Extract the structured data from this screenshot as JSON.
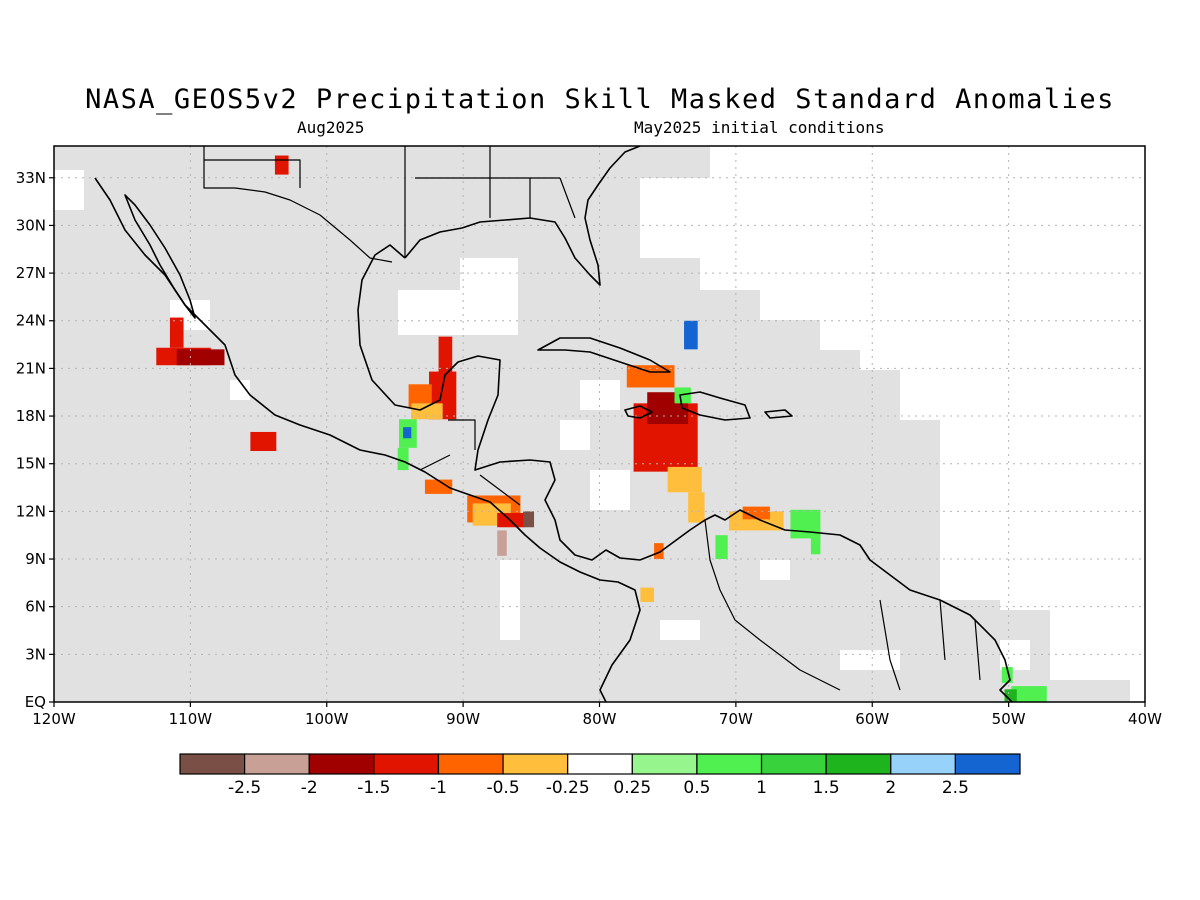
{
  "title": "NASA_GEOS5v2 Precipitation Skill Masked Standard Anomalies",
  "subtitle_left": "Aug2025",
  "subtitle_right": "May2025 initial conditions",
  "colors": {
    "land_mask": "#e1e1e1",
    "ocean": "#ffffff",
    "coast": "#000000",
    "grid": "#b4b4b4"
  },
  "map": {
    "lon_range": [
      -120,
      -40
    ],
    "lat_range": [
      0,
      35
    ],
    "lon_ticks": [
      -120,
      -110,
      -100,
      -90,
      -80,
      -70,
      -60,
      -50,
      -40
    ],
    "lon_tick_labels": [
      "120W",
      "110W",
      "100W",
      "90W",
      "80W",
      "70W",
      "60W",
      "50W",
      "40W"
    ],
    "lat_ticks": [
      0,
      3,
      6,
      9,
      12,
      15,
      18,
      21,
      24,
      27,
      30,
      33
    ],
    "lat_tick_labels": [
      "EQ",
      "3N",
      "6N",
      "9N",
      "12N",
      "15N",
      "18N",
      "21N",
      "24N",
      "27N",
      "30N",
      "33N"
    ]
  },
  "colorbar": {
    "colors": [
      "#7a5046",
      "#c8a096",
      "#a00000",
      "#e11400",
      "#ff6400",
      "#ffbe3c",
      "#ffffff",
      "#96f58c",
      "#50f050",
      "#37d23c",
      "#1eb41e",
      "#96d2fa",
      "#1464d2"
    ],
    "labels": [
      "-2.5",
      "-2",
      "-1.5",
      "-1",
      "-0.5",
      "-0.25",
      "0.25",
      "0.5",
      "1",
      "1.5",
      "2",
      "2.5"
    ]
  },
  "anomaly_patches": [
    {
      "lon": [
        -112.5,
        -108.5
      ],
      "lat": [
        21.2,
        22.3
      ],
      "color": "#e11400"
    },
    {
      "lon": [
        -111.5,
        -110.5
      ],
      "lat": [
        22.3,
        24.2
      ],
      "color": "#e11400"
    },
    {
      "lon": [
        -111.0,
        -107.5
      ],
      "lat": [
        21.2,
        22.2
      ],
      "color": "#a00000"
    },
    {
      "lon": [
        -105.6,
        -103.7
      ],
      "lat": [
        15.8,
        17.0
      ],
      "color": "#e11400"
    },
    {
      "lon": [
        -103.8,
        -102.8
      ],
      "lat": [
        33.2,
        34.4
      ],
      "color": "#e11400"
    },
    {
      "lon": [
        -91.8,
        -90.8
      ],
      "lat": [
        19.5,
        23.0
      ],
      "color": "#e11400"
    },
    {
      "lon": [
        -92.5,
        -90.5
      ],
      "lat": [
        17.8,
        20.8
      ],
      "color": "#e11400"
    },
    {
      "lon": [
        -94.0,
        -92.3
      ],
      "lat": [
        18.5,
        20.0
      ],
      "color": "#ff6400"
    },
    {
      "lon": [
        -93.8,
        -91.5
      ],
      "lat": [
        17.8,
        18.8
      ],
      "color": "#ffbe3c"
    },
    {
      "lon": [
        -94.7,
        -93.4
      ],
      "lat": [
        16.0,
        17.8
      ],
      "color": "#50f050"
    },
    {
      "lon": [
        -94.4,
        -93.8
      ],
      "lat": [
        16.6,
        17.3
      ],
      "color": "#1464d2"
    },
    {
      "lon": [
        -94.8,
        -94.0
      ],
      "lat": [
        14.6,
        16.0
      ],
      "color": "#50f050"
    },
    {
      "lon": [
        -92.8,
        -90.8
      ],
      "lat": [
        13.1,
        14.0
      ],
      "color": "#ff6400"
    },
    {
      "lon": [
        -89.7,
        -85.8
      ],
      "lat": [
        11.3,
        13.0
      ],
      "color": "#ff6400"
    },
    {
      "lon": [
        -89.3,
        -86.5
      ],
      "lat": [
        11.1,
        12.5
      ],
      "color": "#ffbe3c"
    },
    {
      "lon": [
        -87.5,
        -85.5
      ],
      "lat": [
        11.0,
        11.9
      ],
      "color": "#e11400"
    },
    {
      "lon": [
        -85.6,
        -84.8
      ],
      "lat": [
        11.0,
        12.0
      ],
      "color": "#7a5046"
    },
    {
      "lon": [
        -87.5,
        -86.8
      ],
      "lat": [
        9.2,
        10.8
      ],
      "color": "#c8a096"
    },
    {
      "lon": [
        -78.0,
        -74.5
      ],
      "lat": [
        19.8,
        21.2
      ],
      "color": "#ff6400"
    },
    {
      "lon": [
        -77.5,
        -72.8
      ],
      "lat": [
        14.5,
        18.8
      ],
      "color": "#e11400"
    },
    {
      "lon": [
        -76.5,
        -73.5
      ],
      "lat": [
        17.5,
        19.5
      ],
      "color": "#a00000"
    },
    {
      "lon": [
        -75.0,
        -72.5
      ],
      "lat": [
        13.2,
        14.8
      ],
      "color": "#ffbe3c"
    },
    {
      "lon": [
        -73.5,
        -72.3
      ],
      "lat": [
        11.3,
        13.2
      ],
      "color": "#ffbe3c"
    },
    {
      "lon": [
        -70.5,
        -66.5
      ],
      "lat": [
        10.8,
        12.0
      ],
      "color": "#ffbe3c"
    },
    {
      "lon": [
        -69.5,
        -67.5
      ],
      "lat": [
        11.5,
        12.3
      ],
      "color": "#ff6400"
    },
    {
      "lon": [
        -66.0,
        -63.8
      ],
      "lat": [
        10.3,
        12.1
      ],
      "color": "#50f050"
    },
    {
      "lon": [
        -64.5,
        -63.8
      ],
      "lat": [
        9.3,
        10.5
      ],
      "color": "#50f050"
    },
    {
      "lon": [
        -73.8,
        -72.8
      ],
      "lat": [
        22.2,
        24.0
      ],
      "color": "#1464d2"
    },
    {
      "lon": [
        -74.5,
        -73.3
      ],
      "lat": [
        18.8,
        19.8
      ],
      "color": "#50f050"
    },
    {
      "lon": [
        -71.5,
        -70.6
      ],
      "lat": [
        9.0,
        10.5
      ],
      "color": "#50f050"
    },
    {
      "lon": [
        -76.0,
        -75.3
      ],
      "lat": [
        9.0,
        10.0
      ],
      "color": "#ff6400"
    },
    {
      "lon": [
        -77.0,
        -76.0
      ],
      "lat": [
        6.3,
        7.2
      ],
      "color": "#ffbe3c"
    },
    {
      "lon": [
        -50.5,
        -49.7
      ],
      "lat": [
        1.2,
        2.2
      ],
      "color": "#50f050"
    },
    {
      "lon": [
        -49.8,
        -47.2
      ],
      "lat": [
        0.0,
        1.0
      ],
      "color": "#50f050"
    },
    {
      "lon": [
        -50.3,
        -49.4
      ],
      "lat": [
        0.0,
        0.8
      ],
      "color": "#1eb41e"
    }
  ]
}
